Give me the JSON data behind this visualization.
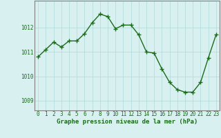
{
  "x": [
    0,
    1,
    2,
    3,
    4,
    5,
    6,
    7,
    8,
    9,
    10,
    11,
    12,
    13,
    14,
    15,
    16,
    17,
    18,
    19,
    20,
    21,
    22,
    23
  ],
  "y": [
    1010.8,
    1011.1,
    1011.4,
    1011.2,
    1011.45,
    1011.45,
    1011.75,
    1012.2,
    1012.55,
    1012.45,
    1011.95,
    1012.1,
    1012.1,
    1011.7,
    1011.0,
    1010.95,
    1010.3,
    1009.75,
    1009.45,
    1009.35,
    1009.35,
    1009.75,
    1010.75,
    1011.7
  ],
  "line_color": "#1a6b1a",
  "marker": "+",
  "marker_size": 4,
  "linewidth": 1.0,
  "bg_color": "#d8f0f0",
  "grid_color": "#b0d8d8",
  "xlabel": "Graphe pression niveau de la mer (hPa)",
  "xlabel_color": "#1a6b1a",
  "xlabel_fontsize": 6.5,
  "tick_color": "#1a6b1a",
  "tick_fontsize": 5.5,
  "yticks": [
    1009,
    1010,
    1011,
    1012
  ],
  "ylim": [
    1008.6,
    1013.1
  ],
  "xlim": [
    -0.5,
    23.5
  ],
  "xticks": [
    0,
    1,
    2,
    3,
    4,
    5,
    6,
    7,
    8,
    9,
    10,
    11,
    12,
    13,
    14,
    15,
    16,
    17,
    18,
    19,
    20,
    21,
    22,
    23
  ]
}
